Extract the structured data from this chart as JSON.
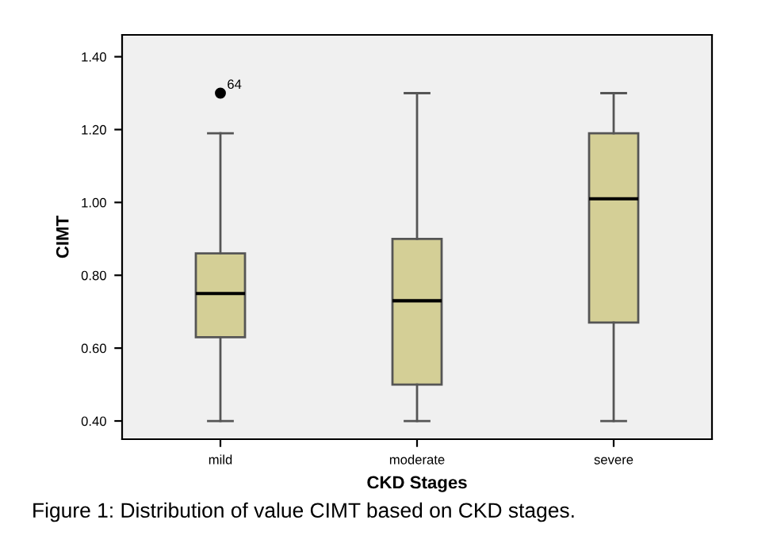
{
  "chart_data": {
    "type": "box",
    "xlabel": "CKD Stages",
    "ylabel": "CIMT",
    "categories": [
      "mild",
      "moderate",
      "severe"
    ],
    "boxes": [
      {
        "low": 0.4,
        "q1": 0.63,
        "median": 0.75,
        "q3": 0.86,
        "high": 1.19,
        "outliers": [
          1.3
        ]
      },
      {
        "low": 0.4,
        "q1": 0.5,
        "median": 0.73,
        "q3": 0.9,
        "high": 1.3
      },
      {
        "low": 0.4,
        "q1": 0.67,
        "median": 1.01,
        "q3": 1.19,
        "high": 1.3
      }
    ],
    "color": "#d4cf96",
    "ylim": [
      0.35,
      1.46
    ],
    "yticks": [
      {
        "value": 0.4,
        "label": "0.40"
      },
      {
        "value": 0.6,
        "label": "0.60"
      },
      {
        "value": 0.8,
        "label": "0.80"
      },
      {
        "value": 1.0,
        "label": "1.00"
      },
      {
        "value": 1.2,
        "label": "1.20"
      },
      {
        "value": 1.4,
        "label": "1.40"
      }
    ],
    "annotations": [
      "64",
      "Figure 1: Distribution of value CIMT based on CKD stages."
    ],
    "grid": false
  }
}
